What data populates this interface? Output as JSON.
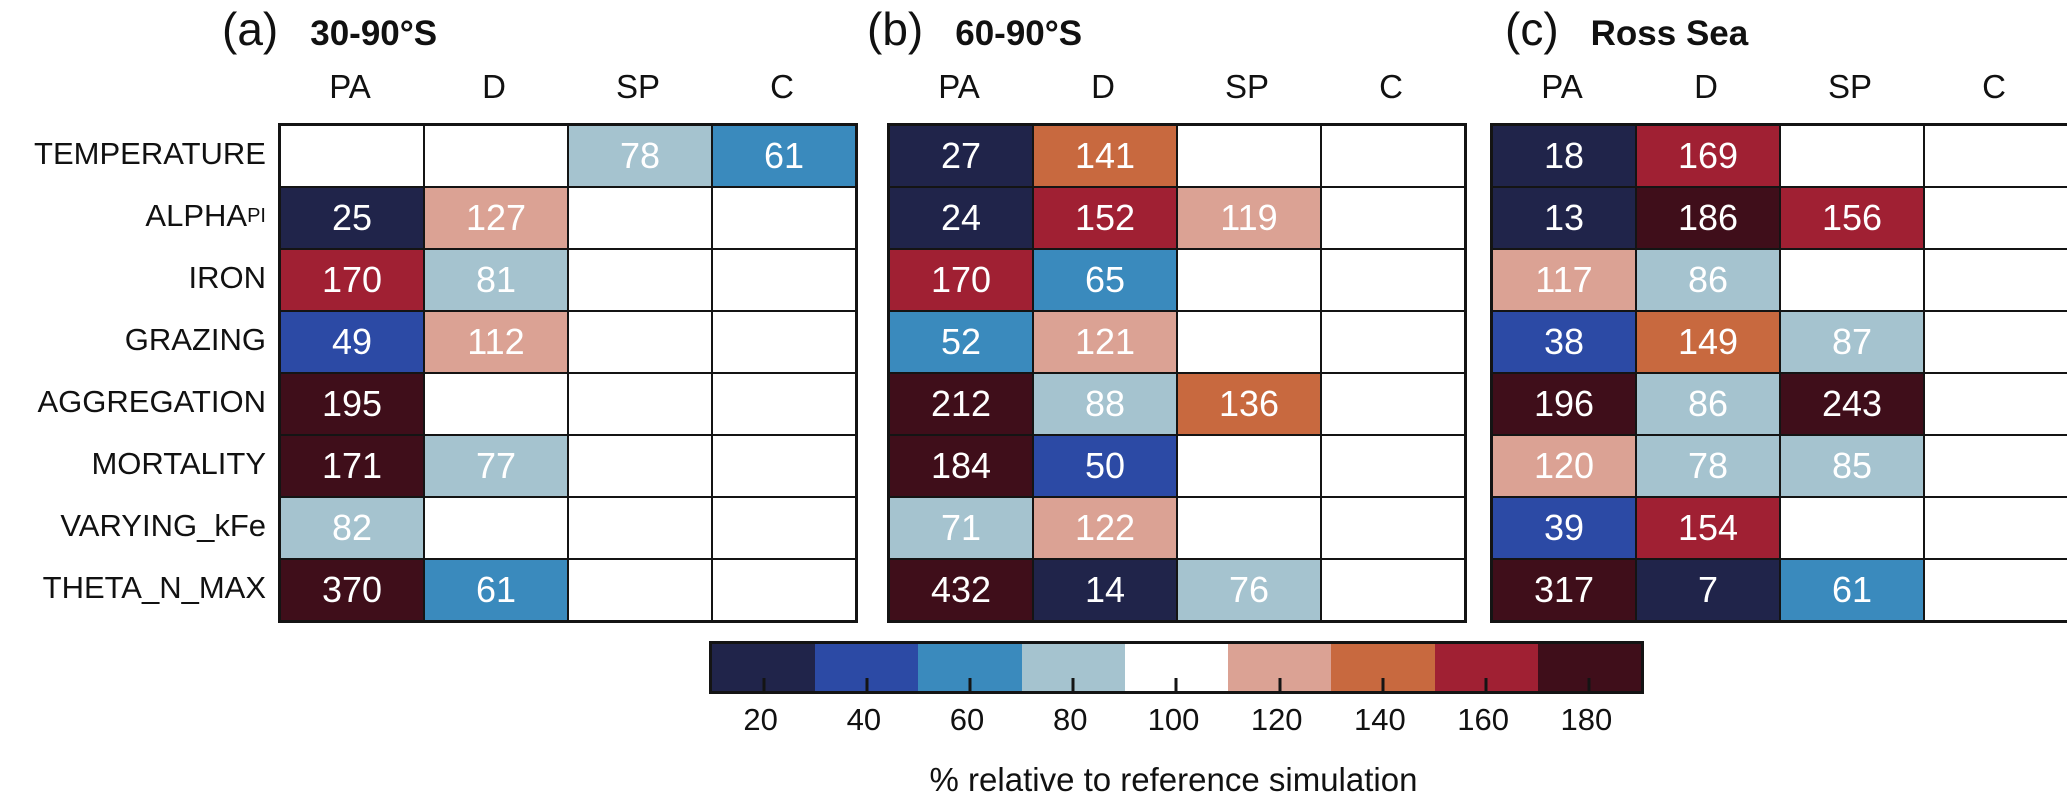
{
  "chart_data": {
    "type": "heatmap",
    "columns": [
      "PA",
      "D",
      "SP",
      "C"
    ],
    "rows": [
      {
        "label": "TEMPERATURE",
        "sub": ""
      },
      {
        "label": "ALPHA",
        "sub": "PI"
      },
      {
        "label": "IRON",
        "sub": ""
      },
      {
        "label": "GRAZING",
        "sub": ""
      },
      {
        "label": "AGGREGATION",
        "sub": ""
      },
      {
        "label": "MORTALITY",
        "sub": ""
      },
      {
        "label": "VARYING_kFe",
        "sub": ""
      },
      {
        "label": "THETA_N_MAX",
        "sub": ""
      }
    ],
    "panels": [
      {
        "tag": "(a)",
        "title": "30-90°S",
        "values": [
          [
            null,
            null,
            78,
            61
          ],
          [
            25,
            127,
            null,
            null
          ],
          [
            170,
            81,
            null,
            null
          ],
          [
            49,
            112,
            null,
            null
          ],
          [
            195,
            null,
            null,
            null
          ],
          [
            171,
            77,
            null,
            null
          ],
          [
            82,
            null,
            null,
            null
          ],
          [
            370,
            61,
            null,
            null
          ]
        ]
      },
      {
        "tag": "(b)",
        "title": "60-90°S",
        "values": [
          [
            27,
            141,
            null,
            null
          ],
          [
            24,
            152,
            119,
            null
          ],
          [
            170,
            65,
            null,
            null
          ],
          [
            52,
            121,
            null,
            null
          ],
          [
            212,
            88,
            136,
            null
          ],
          [
            184,
            50,
            null,
            null
          ],
          [
            71,
            122,
            null,
            null
          ],
          [
            432,
            14,
            76,
            null
          ]
        ]
      },
      {
        "tag": "(c)",
        "title": "Ross Sea",
        "values": [
          [
            18,
            169,
            null,
            null
          ],
          [
            13,
            186,
            156,
            null
          ],
          [
            117,
            86,
            null,
            null
          ],
          [
            38,
            149,
            87,
            null
          ],
          [
            196,
            86,
            243,
            null
          ],
          [
            120,
            78,
            85,
            null
          ],
          [
            39,
            154,
            null,
            null
          ],
          [
            317,
            7,
            61,
            null
          ]
        ]
      }
    ],
    "colorbar": {
      "label": "% relative to reference simulation",
      "ticks": [
        20,
        40,
        60,
        80,
        100,
        120,
        140,
        160,
        180
      ],
      "bin_upper_edges": [
        30,
        50,
        70,
        90,
        110,
        130,
        150,
        170
      ],
      "colors": [
        "#20244a",
        "#2c4aa5",
        "#3a8abd",
        "#a5c3cf",
        "#ffffff",
        "#dba294",
        "#c8693f",
        "#a02033",
        "#3f0e1a"
      ],
      "value_text_color": "#ffffff",
      "grid_color": "#141414",
      "legend_position": "bottom"
    }
  }
}
